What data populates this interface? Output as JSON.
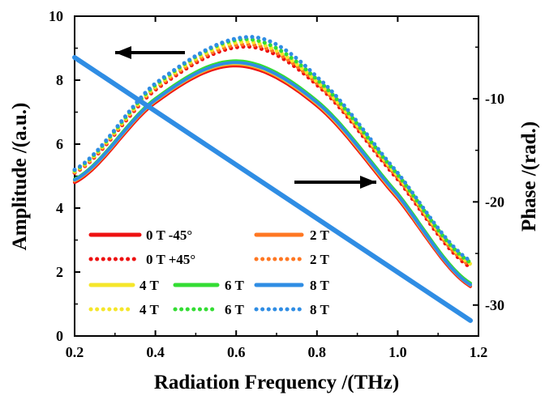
{
  "chart_data": {
    "type": "line",
    "xlabel": "Radiation Frequency /(THz)",
    "ylabel": "Amplitude /(a.u.)",
    "y2label": "Phase /(rad.)",
    "xlim": [
      0.2,
      1.2
    ],
    "ylim": [
      0,
      10
    ],
    "y2lim": [
      -33,
      -2
    ],
    "xticks": [
      "0.2",
      "0.4",
      "0.6",
      "0.8",
      "1.0",
      "1.2"
    ],
    "yticks": [
      "0",
      "2",
      "4",
      "6",
      "8",
      "10"
    ],
    "y2ticks": [
      "-10",
      "-20",
      "-30"
    ],
    "grid": false,
    "legend_placement": "bottom-left, inside plot",
    "annotations": [
      {
        "kind": "arrow",
        "direction": "left",
        "meaning": "amplitude curves refer to left axis"
      },
      {
        "kind": "arrow",
        "direction": "right",
        "meaning": "phase line refers to right axis"
      }
    ],
    "amplitude_series": [
      {
        "name": "0 T -45°",
        "color": "#ee1111",
        "style": "solid",
        "peak_x": 0.6,
        "peak_y": 8.45,
        "x": [
          0.2,
          0.4,
          0.6,
          0.8,
          1.0,
          1.18
        ],
        "y": [
          4.8,
          7.3,
          8.45,
          7.2,
          4.3,
          1.55
        ]
      },
      {
        "name": "2 T",
        "color": "#ff7722",
        "style": "solid",
        "peak_x": 0.6,
        "peak_y": 8.5,
        "x": [
          0.2,
          0.4,
          0.6,
          0.8,
          1.0,
          1.18
        ],
        "y": [
          4.85,
          7.35,
          8.5,
          7.25,
          4.35,
          1.58
        ]
      },
      {
        "name": "4 T",
        "color": "#f5e62a",
        "style": "solid",
        "peak_x": 0.6,
        "peak_y": 8.53,
        "x": [
          0.2,
          0.4,
          0.6,
          0.8,
          1.0,
          1.18
        ],
        "y": [
          4.87,
          7.37,
          8.53,
          7.28,
          4.38,
          1.6
        ]
      },
      {
        "name": "6 T",
        "color": "#33dd33",
        "style": "solid",
        "peak_x": 0.6,
        "peak_y": 8.6,
        "x": [
          0.2,
          0.4,
          0.6,
          0.8,
          1.0,
          1.18
        ],
        "y": [
          4.9,
          7.42,
          8.6,
          7.35,
          4.45,
          1.65
        ]
      },
      {
        "name": "8 T",
        "color": "#2f8de4",
        "style": "solid",
        "peak_x": 0.6,
        "peak_y": 8.55,
        "x": [
          0.2,
          0.4,
          0.6,
          0.8,
          1.0,
          1.18
        ],
        "y": [
          4.88,
          7.38,
          8.55,
          7.3,
          4.4,
          1.6
        ]
      },
      {
        "name": "0 T +45°",
        "color": "#ee1111",
        "style": "dotted",
        "peak_x": 0.62,
        "peak_y": 9.05,
        "x": [
          0.2,
          0.4,
          0.62,
          0.8,
          1.0,
          1.18
        ],
        "y": [
          5.1,
          7.7,
          9.05,
          7.85,
          4.9,
          2.15
        ]
      },
      {
        "name": "2 T",
        "color": "#ff7722",
        "style": "dotted",
        "peak_x": 0.62,
        "peak_y": 9.12,
        "x": [
          0.2,
          0.4,
          0.62,
          0.8,
          1.0,
          1.18
        ],
        "y": [
          5.12,
          7.75,
          9.12,
          7.9,
          4.95,
          2.2
        ]
      },
      {
        "name": "4 T",
        "color": "#f5e62a",
        "style": "dotted",
        "peak_x": 0.62,
        "peak_y": 9.2,
        "x": [
          0.2,
          0.4,
          0.62,
          0.8,
          1.0,
          1.18
        ],
        "y": [
          5.15,
          7.8,
          9.2,
          7.95,
          5.0,
          2.25
        ]
      },
      {
        "name": "6 T",
        "color": "#33dd33",
        "style": "dotted",
        "peak_x": 0.62,
        "peak_y": 9.28,
        "x": [
          0.2,
          0.4,
          0.62,
          0.8,
          1.0,
          1.18
        ],
        "y": [
          5.18,
          7.85,
          9.28,
          8.02,
          5.05,
          2.3
        ]
      },
      {
        "name": "8 T",
        "color": "#2f8de4",
        "style": "dotted",
        "peak_x": 0.63,
        "peak_y": 9.35,
        "x": [
          0.2,
          0.4,
          0.63,
          0.8,
          1.0,
          1.18
        ],
        "y": [
          5.2,
          7.9,
          9.35,
          8.1,
          5.1,
          2.35
        ]
      }
    ],
    "phase_line": {
      "axis": "right",
      "color": "#2f8de4",
      "x": [
        0.2,
        1.18
      ],
      "y": [
        -6,
        -31.5
      ]
    }
  }
}
